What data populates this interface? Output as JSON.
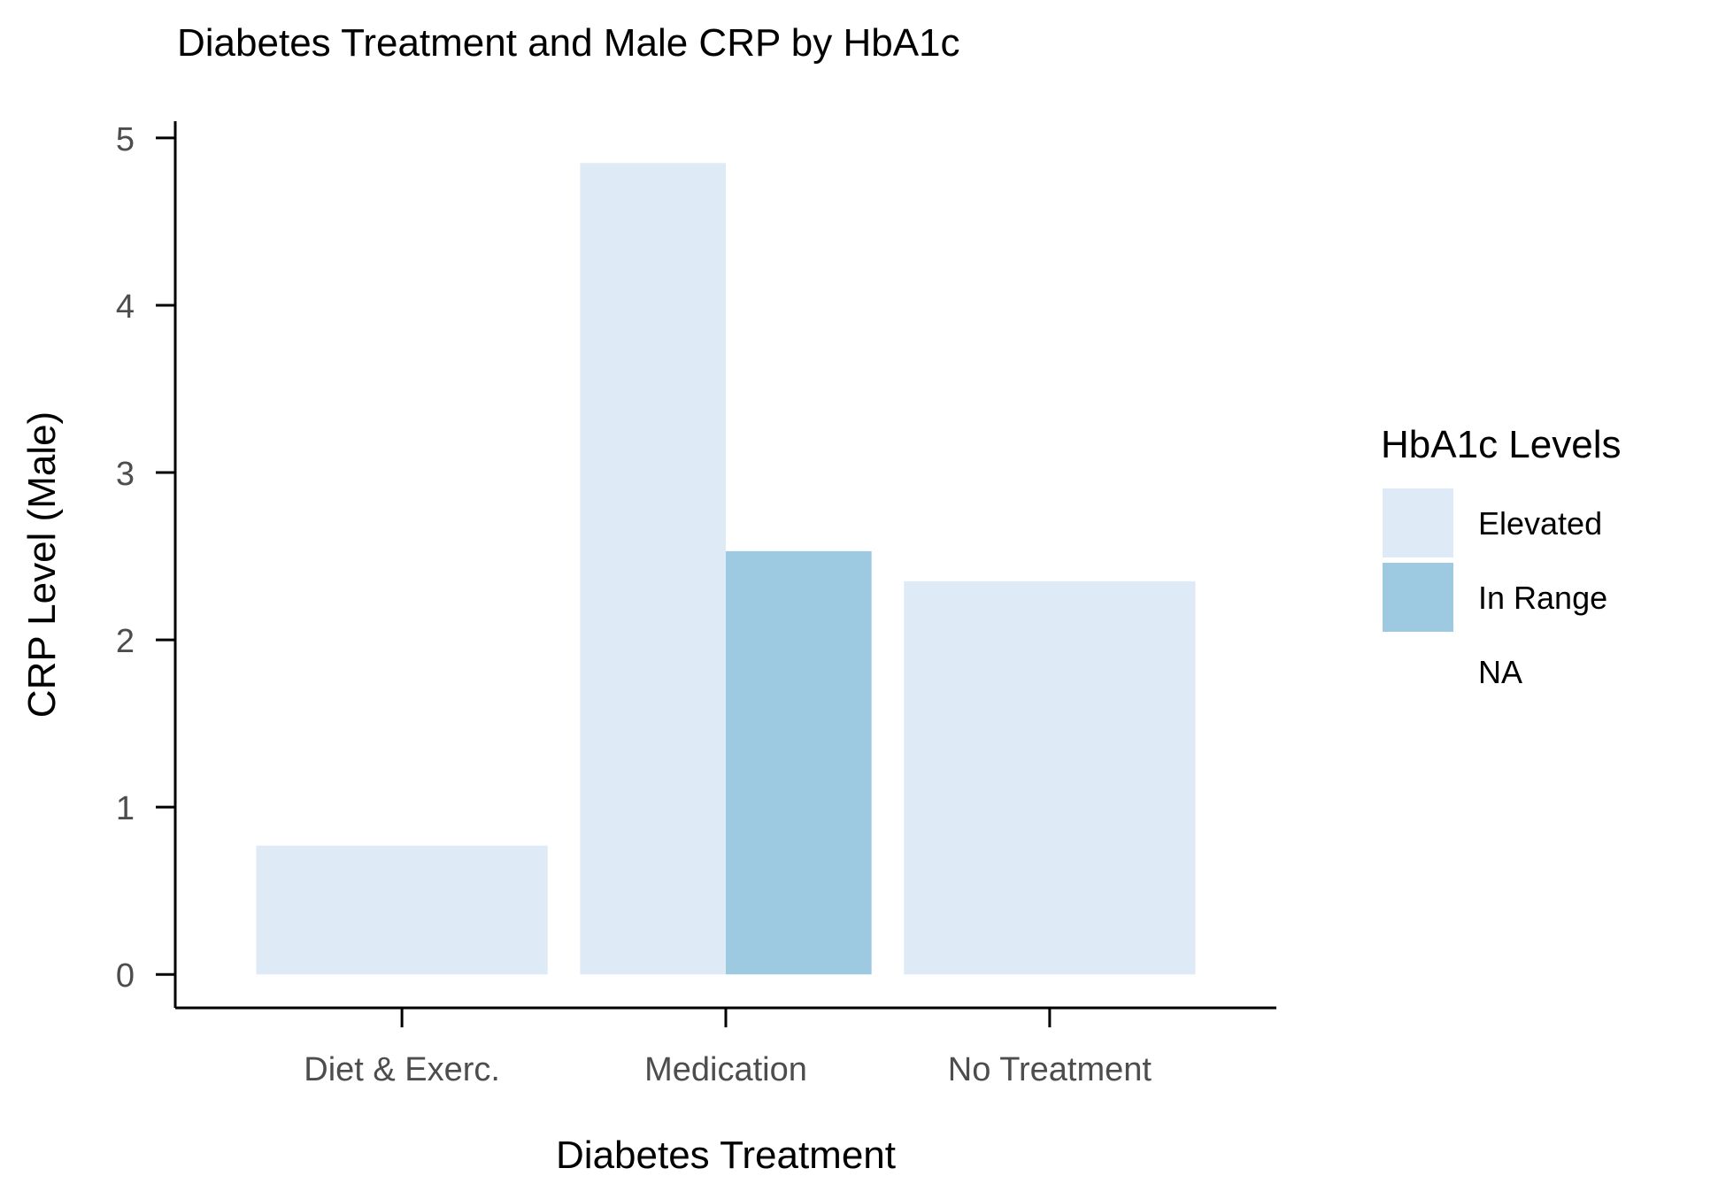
{
  "chart_data": {
    "type": "bar",
    "title": "Diabetes Treatment and Male CRP by HbA1c",
    "xlabel": "Diabetes Treatment",
    "ylabel": "CRP Level (Male)",
    "categories": [
      "Diet & Exerc.",
      "Medication",
      "No Treatment"
    ],
    "ylim": [
      -0.2,
      5.1
    ],
    "y_ticks": [
      0,
      1,
      2,
      3,
      4,
      5
    ],
    "grid": false,
    "legend": {
      "title": "HbA1c Levels",
      "position": "right",
      "entries": [
        {
          "label": "Elevated",
          "color": "#deebf7"
        },
        {
          "label": "In Range",
          "color": "#9ecae1"
        },
        {
          "label": "NA",
          "color": "#ffffff"
        }
      ]
    },
    "groups": [
      {
        "category": "Diet & Exerc.",
        "bars": [
          {
            "series": "Elevated",
            "value": 0.77
          }
        ]
      },
      {
        "category": "Medication",
        "bars": [
          {
            "series": "Elevated",
            "value": 4.85
          },
          {
            "series": "In Range",
            "value": 2.53
          }
        ]
      },
      {
        "category": "No Treatment",
        "bars": [
          {
            "series": "Elevated",
            "value": 2.35
          }
        ]
      }
    ]
  }
}
